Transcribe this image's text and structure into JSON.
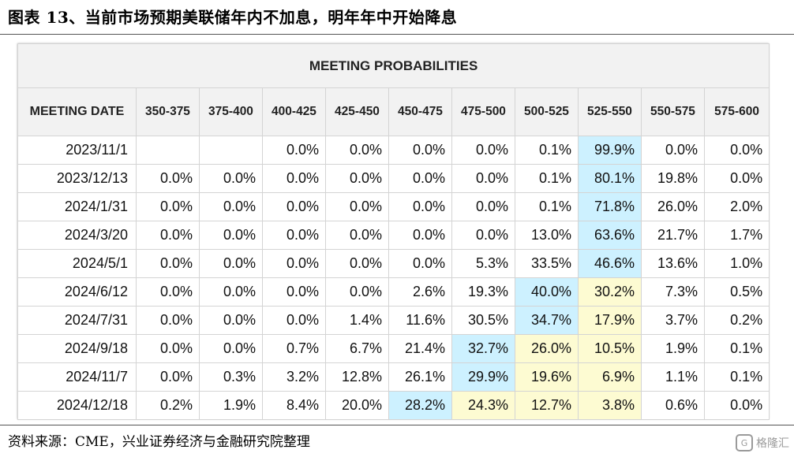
{
  "caption": "图表 13、当前市场预期美联储年内不加息，明年年中开始降息",
  "table_title": "MEETING PROBABILITIES",
  "columns": [
    "MEETING DATE",
    "350-375",
    "375-400",
    "400-425",
    "425-450",
    "450-475",
    "475-500",
    "500-525",
    "525-550",
    "550-575",
    "575-600"
  ],
  "rows": [
    {
      "date": "2023/11/1",
      "values": [
        "",
        "",
        "0.0%",
        "0.0%",
        "0.0%",
        "0.0%",
        "0.1%",
        "99.9%",
        "0.0%",
        "0.0%"
      ],
      "hl": [
        "",
        "",
        "",
        "",
        "",
        "",
        "",
        "blue",
        "",
        ""
      ]
    },
    {
      "date": "2023/12/13",
      "values": [
        "0.0%",
        "0.0%",
        "0.0%",
        "0.0%",
        "0.0%",
        "0.0%",
        "0.1%",
        "80.1%",
        "19.8%",
        "0.0%"
      ],
      "hl": [
        "",
        "",
        "",
        "",
        "",
        "",
        "",
        "blue",
        "",
        ""
      ]
    },
    {
      "date": "2024/1/31",
      "values": [
        "0.0%",
        "0.0%",
        "0.0%",
        "0.0%",
        "0.0%",
        "0.0%",
        "0.1%",
        "71.8%",
        "26.0%",
        "2.0%"
      ],
      "hl": [
        "",
        "",
        "",
        "",
        "",
        "",
        "",
        "blue",
        "",
        ""
      ]
    },
    {
      "date": "2024/3/20",
      "values": [
        "0.0%",
        "0.0%",
        "0.0%",
        "0.0%",
        "0.0%",
        "0.0%",
        "13.0%",
        "63.6%",
        "21.7%",
        "1.7%"
      ],
      "hl": [
        "",
        "",
        "",
        "",
        "",
        "",
        "",
        "blue",
        "",
        ""
      ]
    },
    {
      "date": "2024/5/1",
      "values": [
        "0.0%",
        "0.0%",
        "0.0%",
        "0.0%",
        "0.0%",
        "5.3%",
        "33.5%",
        "46.6%",
        "13.6%",
        "1.0%"
      ],
      "hl": [
        "",
        "",
        "",
        "",
        "",
        "",
        "",
        "blue",
        "",
        ""
      ]
    },
    {
      "date": "2024/6/12",
      "values": [
        "0.0%",
        "0.0%",
        "0.0%",
        "0.0%",
        "2.6%",
        "19.3%",
        "40.0%",
        "30.2%",
        "7.3%",
        "0.5%"
      ],
      "hl": [
        "",
        "",
        "",
        "",
        "",
        "",
        "blue",
        "yellow",
        "",
        ""
      ]
    },
    {
      "date": "2024/7/31",
      "values": [
        "0.0%",
        "0.0%",
        "0.0%",
        "1.4%",
        "11.6%",
        "30.5%",
        "34.7%",
        "17.9%",
        "3.7%",
        "0.2%"
      ],
      "hl": [
        "",
        "",
        "",
        "",
        "",
        "",
        "blue",
        "yellow",
        "",
        ""
      ]
    },
    {
      "date": "2024/9/18",
      "values": [
        "0.0%",
        "0.0%",
        "0.7%",
        "6.7%",
        "21.4%",
        "32.7%",
        "26.0%",
        "10.5%",
        "1.9%",
        "0.1%"
      ],
      "hl": [
        "",
        "",
        "",
        "",
        "",
        "blue",
        "yellow",
        "yellow",
        "",
        ""
      ]
    },
    {
      "date": "2024/11/7",
      "values": [
        "0.0%",
        "0.3%",
        "3.2%",
        "12.8%",
        "26.1%",
        "29.9%",
        "19.6%",
        "6.9%",
        "1.1%",
        "0.1%"
      ],
      "hl": [
        "",
        "",
        "",
        "",
        "",
        "blue",
        "yellow",
        "yellow",
        "",
        ""
      ]
    },
    {
      "date": "2024/12/18",
      "values": [
        "0.2%",
        "1.9%",
        "8.4%",
        "20.0%",
        "28.2%",
        "24.3%",
        "12.7%",
        "3.8%",
        "0.6%",
        "0.0%"
      ],
      "hl": [
        "",
        "",
        "",
        "",
        "blue",
        "yellow",
        "yellow",
        "yellow",
        "",
        ""
      ]
    }
  ],
  "colors": {
    "blue": "#cdf1ff",
    "yellow": "#fdfbd2",
    "header_bg": "#f2f2f2"
  },
  "source": "资料来源：CME，兴业证券经济与金融研究院整理",
  "watermark": {
    "icon": "logo-mark-icon",
    "label": "格隆汇"
  }
}
